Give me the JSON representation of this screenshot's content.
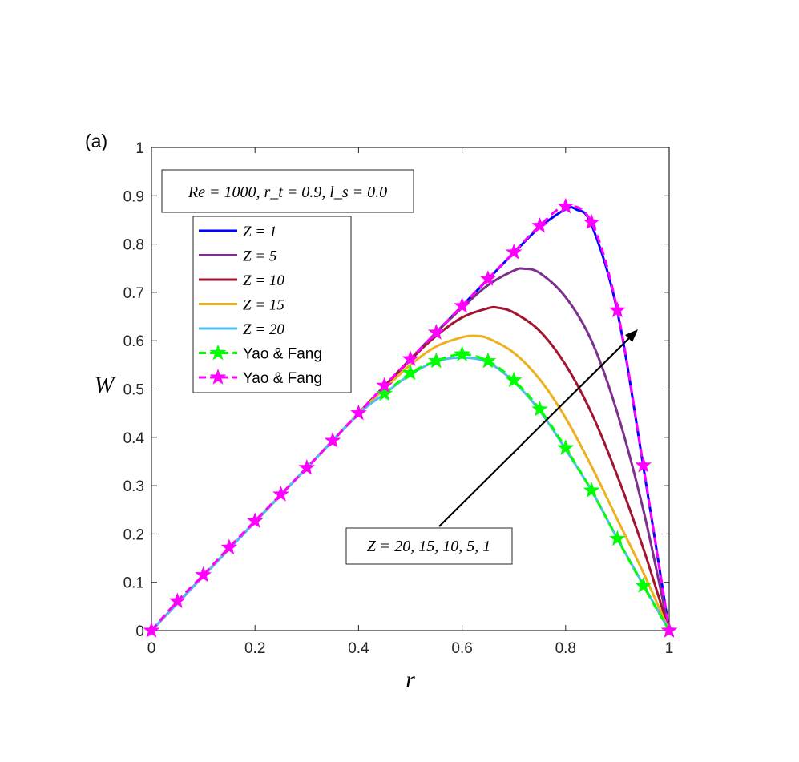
{
  "chart_data": {
    "type": "line",
    "panel_label": "(a)",
    "xlabel": "r",
    "ylabel": "W",
    "xlim": [
      0,
      1
    ],
    "ylim": [
      0,
      1
    ],
    "xticks": [
      0,
      0.2,
      0.4,
      0.6,
      0.8,
      1
    ],
    "xtick_labels": [
      "0",
      "0.2",
      "0.4",
      "0.6",
      "0.8",
      "1"
    ],
    "yticks": [
      0,
      0.1,
      0.2,
      0.3,
      0.4,
      0.5,
      0.6,
      0.7,
      0.8,
      0.9,
      1
    ],
    "ytick_labels": [
      "0",
      "0.1",
      "0.2",
      "0.3",
      "0.4",
      "0.5",
      "0.6",
      "0.7",
      "0.8",
      "0.9",
      "1"
    ],
    "grid": false,
    "legend_position": "top-left",
    "params_annotation": "Re = 1000, r_t = 0.9, l_s = 0.0",
    "arrow_annotation": "Z = 20, 15, 10, 5, 1",
    "colors": {
      "z1": "#0000ff",
      "z5": "#7e2f8e",
      "z10": "#a2142f",
      "z15": "#edb120",
      "z20": "#4dbeee",
      "green": "#00ff00",
      "magenta": "#ff00ff"
    },
    "series": [
      {
        "name": "Z = 1",
        "color": "#0000ff",
        "style": "solid",
        "x": [
          0,
          0.1,
          0.2,
          0.3,
          0.4,
          0.5,
          0.6,
          0.65,
          0.7,
          0.75,
          0.8,
          0.82,
          0.85,
          0.9,
          0.95,
          1.0
        ],
        "y": [
          0,
          0.113,
          0.225,
          0.337,
          0.45,
          0.562,
          0.672,
          0.727,
          0.782,
          0.835,
          0.872,
          0.872,
          0.84,
          0.66,
          0.34,
          0
        ]
      },
      {
        "name": "Z = 5",
        "color": "#7e2f8e",
        "style": "solid",
        "x": [
          0,
          0.1,
          0.2,
          0.3,
          0.4,
          0.5,
          0.55,
          0.6,
          0.65,
          0.7,
          0.72,
          0.75,
          0.8,
          0.85,
          0.9,
          0.95,
          1.0
        ],
        "y": [
          0,
          0.113,
          0.225,
          0.337,
          0.45,
          0.562,
          0.617,
          0.668,
          0.715,
          0.745,
          0.749,
          0.74,
          0.69,
          0.6,
          0.45,
          0.25,
          0
        ]
      },
      {
        "name": "Z = 10",
        "color": "#a2142f",
        "style": "solid",
        "x": [
          0,
          0.1,
          0.2,
          0.3,
          0.4,
          0.5,
          0.55,
          0.6,
          0.65,
          0.67,
          0.7,
          0.75,
          0.8,
          0.85,
          0.9,
          0.95,
          1.0
        ],
        "y": [
          0,
          0.113,
          0.225,
          0.337,
          0.45,
          0.56,
          0.61,
          0.648,
          0.667,
          0.668,
          0.658,
          0.62,
          0.55,
          0.45,
          0.32,
          0.17,
          0
        ]
      },
      {
        "name": "Z = 15",
        "color": "#edb120",
        "style": "solid",
        "x": [
          0,
          0.1,
          0.2,
          0.3,
          0.4,
          0.45,
          0.5,
          0.55,
          0.6,
          0.625,
          0.65,
          0.7,
          0.75,
          0.8,
          0.85,
          0.9,
          0.95,
          1.0
        ],
        "y": [
          0,
          0.113,
          0.225,
          0.337,
          0.45,
          0.5,
          0.55,
          0.588,
          0.607,
          0.61,
          0.605,
          0.575,
          0.52,
          0.44,
          0.34,
          0.23,
          0.12,
          0
        ]
      },
      {
        "name": "Z = 20",
        "color": "#4dbeee",
        "style": "solid",
        "x": [
          0,
          0.1,
          0.2,
          0.3,
          0.4,
          0.45,
          0.5,
          0.55,
          0.6,
          0.65,
          0.7,
          0.75,
          0.8,
          0.85,
          0.9,
          0.95,
          1.0
        ],
        "y": [
          0,
          0.113,
          0.225,
          0.337,
          0.448,
          0.49,
          0.53,
          0.557,
          0.565,
          0.555,
          0.515,
          0.455,
          0.375,
          0.29,
          0.19,
          0.095,
          0
        ]
      },
      {
        "name": "Yao & Fang",
        "color": "#00ff00",
        "style": "dashed-star",
        "x": [
          0.45,
          0.5,
          0.55,
          0.6,
          0.65,
          0.7,
          0.75,
          0.8,
          0.85,
          0.9,
          0.95,
          1.0
        ],
        "y": [
          0.49,
          0.533,
          0.558,
          0.572,
          0.558,
          0.518,
          0.458,
          0.378,
          0.29,
          0.19,
          0.093,
          0
        ]
      },
      {
        "name": "Yao & Fang",
        "color": "#ff00ff",
        "style": "dashed-star",
        "x": [
          0,
          0.05,
          0.1,
          0.15,
          0.2,
          0.25,
          0.3,
          0.35,
          0.4,
          0.45,
          0.5,
          0.55,
          0.6,
          0.65,
          0.7,
          0.75,
          0.8,
          0.85,
          0.9,
          0.95,
          1.0
        ],
        "y": [
          0,
          0.061,
          0.115,
          0.172,
          0.227,
          0.282,
          0.337,
          0.393,
          0.45,
          0.507,
          0.562,
          0.617,
          0.672,
          0.728,
          0.783,
          0.838,
          0.878,
          0.845,
          0.663,
          0.342,
          0
        ]
      }
    ]
  }
}
